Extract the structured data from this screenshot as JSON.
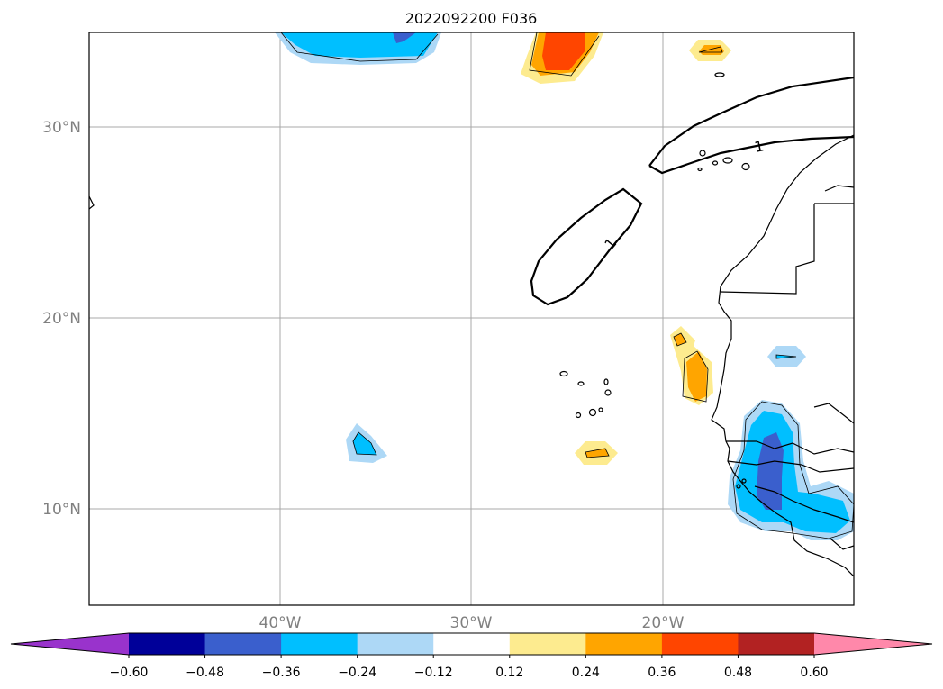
{
  "title": "2022092200 F036",
  "map": {
    "lat_labels": [
      "30°N",
      "20°N",
      "10°N"
    ],
    "lon_labels": [
      "40°W",
      "30°W",
      "20°W"
    ],
    "contour_label": "1",
    "gridline_color": "#a9a9a9",
    "coastline_color": "#000000"
  },
  "colorbar": {
    "colors": [
      "#9933cc",
      "#000099",
      "#3a5fcd",
      "#00bfff",
      "#add8f6",
      "#ffffff",
      "#fdeb8f",
      "#ffa500",
      "#ff4500",
      "#b22222",
      "#ff88aa"
    ],
    "ticks": [
      "−0.60",
      "−0.48",
      "−0.36",
      "−0.24",
      "−0.12",
      "0.12",
      "0.24",
      "0.36",
      "0.48",
      "0.60"
    ]
  }
}
